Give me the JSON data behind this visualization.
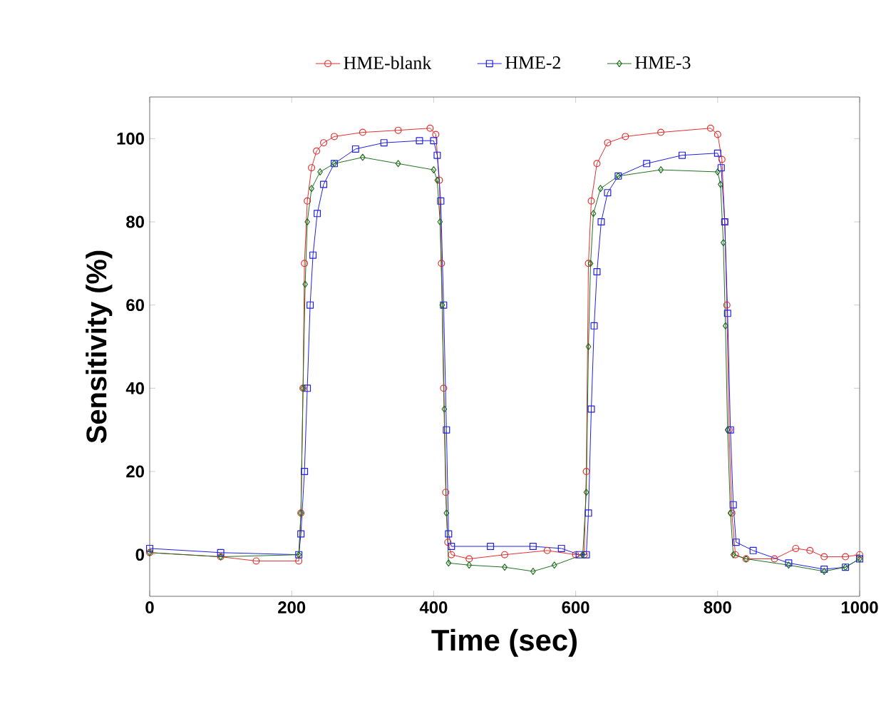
{
  "chart_data": {
    "type": "line",
    "xlabel": "Time (sec)",
    "ylabel": "Sensitivity (%)",
    "xlim": [
      0,
      1000
    ],
    "ylim": [
      -10,
      110
    ],
    "xticks": [
      0,
      200,
      400,
      600,
      800,
      1000
    ],
    "yticks": [
      0,
      20,
      40,
      60,
      80,
      100
    ],
    "legend": "top",
    "grid": false,
    "line_style": "solid",
    "series": [
      {
        "name": "HME-blank",
        "color": "#e03030",
        "marker": "circle",
        "x": [
          0,
          100,
          150,
          210,
          213,
          216,
          218,
          222,
          228,
          235,
          245,
          260,
          300,
          350,
          395,
          403,
          408,
          411,
          414,
          417,
          420,
          425,
          450,
          500,
          560,
          600,
          612,
          615,
          618,
          622,
          630,
          645,
          670,
          720,
          790,
          800,
          806,
          810,
          813,
          816,
          820,
          825,
          840,
          880,
          910,
          930,
          950,
          980,
          1000
        ],
        "values": [
          0.5,
          -0.5,
          -1.5,
          -1.5,
          10,
          40,
          70,
          85,
          93,
          97,
          99,
          100.5,
          101.5,
          102,
          102.5,
          101,
          90,
          70,
          40,
          15,
          3,
          0,
          -1,
          0,
          1,
          0,
          0,
          20,
          70,
          85,
          94,
          99,
          100.5,
          101.5,
          102.5,
          101,
          95,
          80,
          60,
          30,
          10,
          0,
          -1,
          -1,
          1.5,
          1,
          -0.5,
          -0.5,
          0
        ]
      },
      {
        "name": "HME-2",
        "color": "#2020e0",
        "marker": "square",
        "x": [
          0,
          100,
          210,
          213,
          218,
          222,
          226,
          230,
          236,
          245,
          260,
          290,
          330,
          380,
          400,
          405,
          410,
          414,
          418,
          421,
          425,
          480,
          540,
          580,
          605,
          615,
          618,
          622,
          626,
          630,
          636,
          645,
          660,
          700,
          750,
          800,
          805,
          810,
          814,
          818,
          822,
          826,
          850,
          900,
          950,
          980,
          1000
        ],
        "values": [
          1.5,
          0.5,
          0,
          5,
          20,
          40,
          60,
          72,
          82,
          89,
          94,
          97.5,
          99,
          99.5,
          99.5,
          96,
          85,
          60,
          30,
          5,
          2,
          2,
          2,
          1.5,
          0,
          0,
          10,
          35,
          55,
          68,
          80,
          87,
          91,
          94,
          96,
          96.5,
          93,
          80,
          58,
          30,
          12,
          3,
          1,
          -2,
          -3.5,
          -3,
          -1
        ]
      },
      {
        "name": "HME-3",
        "color": "#207020",
        "marker": "diamond",
        "x": [
          0,
          100,
          210,
          213,
          216,
          219,
          222,
          228,
          240,
          260,
          300,
          350,
          400,
          405,
          409,
          412,
          415,
          418,
          421,
          450,
          500,
          540,
          570,
          610,
          615,
          618,
          621,
          625,
          635,
          660,
          720,
          800,
          804,
          808,
          811,
          814,
          818,
          822,
          840,
          900,
          950,
          980,
          1000
        ],
        "values": [
          0.5,
          -0.5,
          0,
          10,
          40,
          65,
          80,
          88,
          92,
          94,
          95.5,
          94,
          92.5,
          90,
          80,
          60,
          35,
          10,
          -2,
          -2.5,
          -3,
          -4,
          -2.5,
          0,
          15,
          50,
          70,
          82,
          88,
          91,
          92.5,
          92,
          89,
          75,
          55,
          30,
          10,
          0,
          -1,
          -2.5,
          -4,
          -3,
          -1
        ]
      }
    ]
  }
}
